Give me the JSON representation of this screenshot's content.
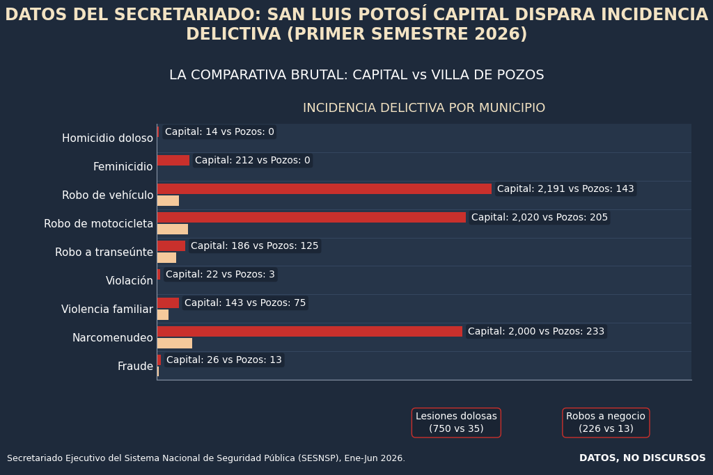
{
  "chart_data": {
    "type": "bar",
    "orientation": "horizontal",
    "title": "DATOS DEL SECRETARIADO: SAN LUIS POTOSÍ CAPITAL DISPARA INCIDENCIA DELICTIVA (PRIMER SEMESTRE 2026)",
    "subtitle": "LA COMPARATIVA BRUTAL: CAPITAL vs VILLA DE POZOS",
    "chart_title": "INCIDENCIA DELICTIVA POR MUNICIPIO",
    "categories": [
      "Homicidio doloso",
      "Feminicidio",
      "Robo de vehículo",
      "Robo de motocicleta",
      "Robo a transeúnte",
      "Violación",
      "Violencia familiar",
      "Narcomenudeo",
      "Fraude"
    ],
    "series": [
      {
        "name": "Capital",
        "color": "#c9302c",
        "values": [
          14,
          212,
          2191,
          2020,
          186,
          22,
          143,
          2000,
          26
        ]
      },
      {
        "name": "Pozos",
        "color": "#f5c99b",
        "values": [
          0,
          0,
          143,
          205,
          125,
          3,
          75,
          233,
          13
        ]
      }
    ],
    "bar_labels": [
      "Capital: 14 vs Pozos: 0",
      "Capital: 212 vs Pozos: 0",
      "Capital: 2,191 vs Pozos: 143",
      "Capital: 2,020 vs Pozos: 205",
      "Capital: 186 vs Pozos: 125",
      "Capital: 22 vs Pozos: 3",
      "Capital: 143 vs Pozos: 75",
      "Capital: 2,000 vs Pozos: 233",
      "Capital: 26 vs Pozos: 13"
    ],
    "xlim": [
      0,
      3500
    ],
    "xticks": [],
    "tick_labels": "y",
    "grid": false,
    "notes": [
      {
        "label": "Lesiones dolosas",
        "text": "(750 vs 35)"
      },
      {
        "label": "Robos a negocio",
        "text": "(226 vs 13)"
      }
    ],
    "source": "Secretariado Ejecutivo del Sistema Nacional de Seguridad Pública (SESNSP), Ene-Jun 2026.",
    "tagline": "DATOS, NO DISCURSOS"
  }
}
